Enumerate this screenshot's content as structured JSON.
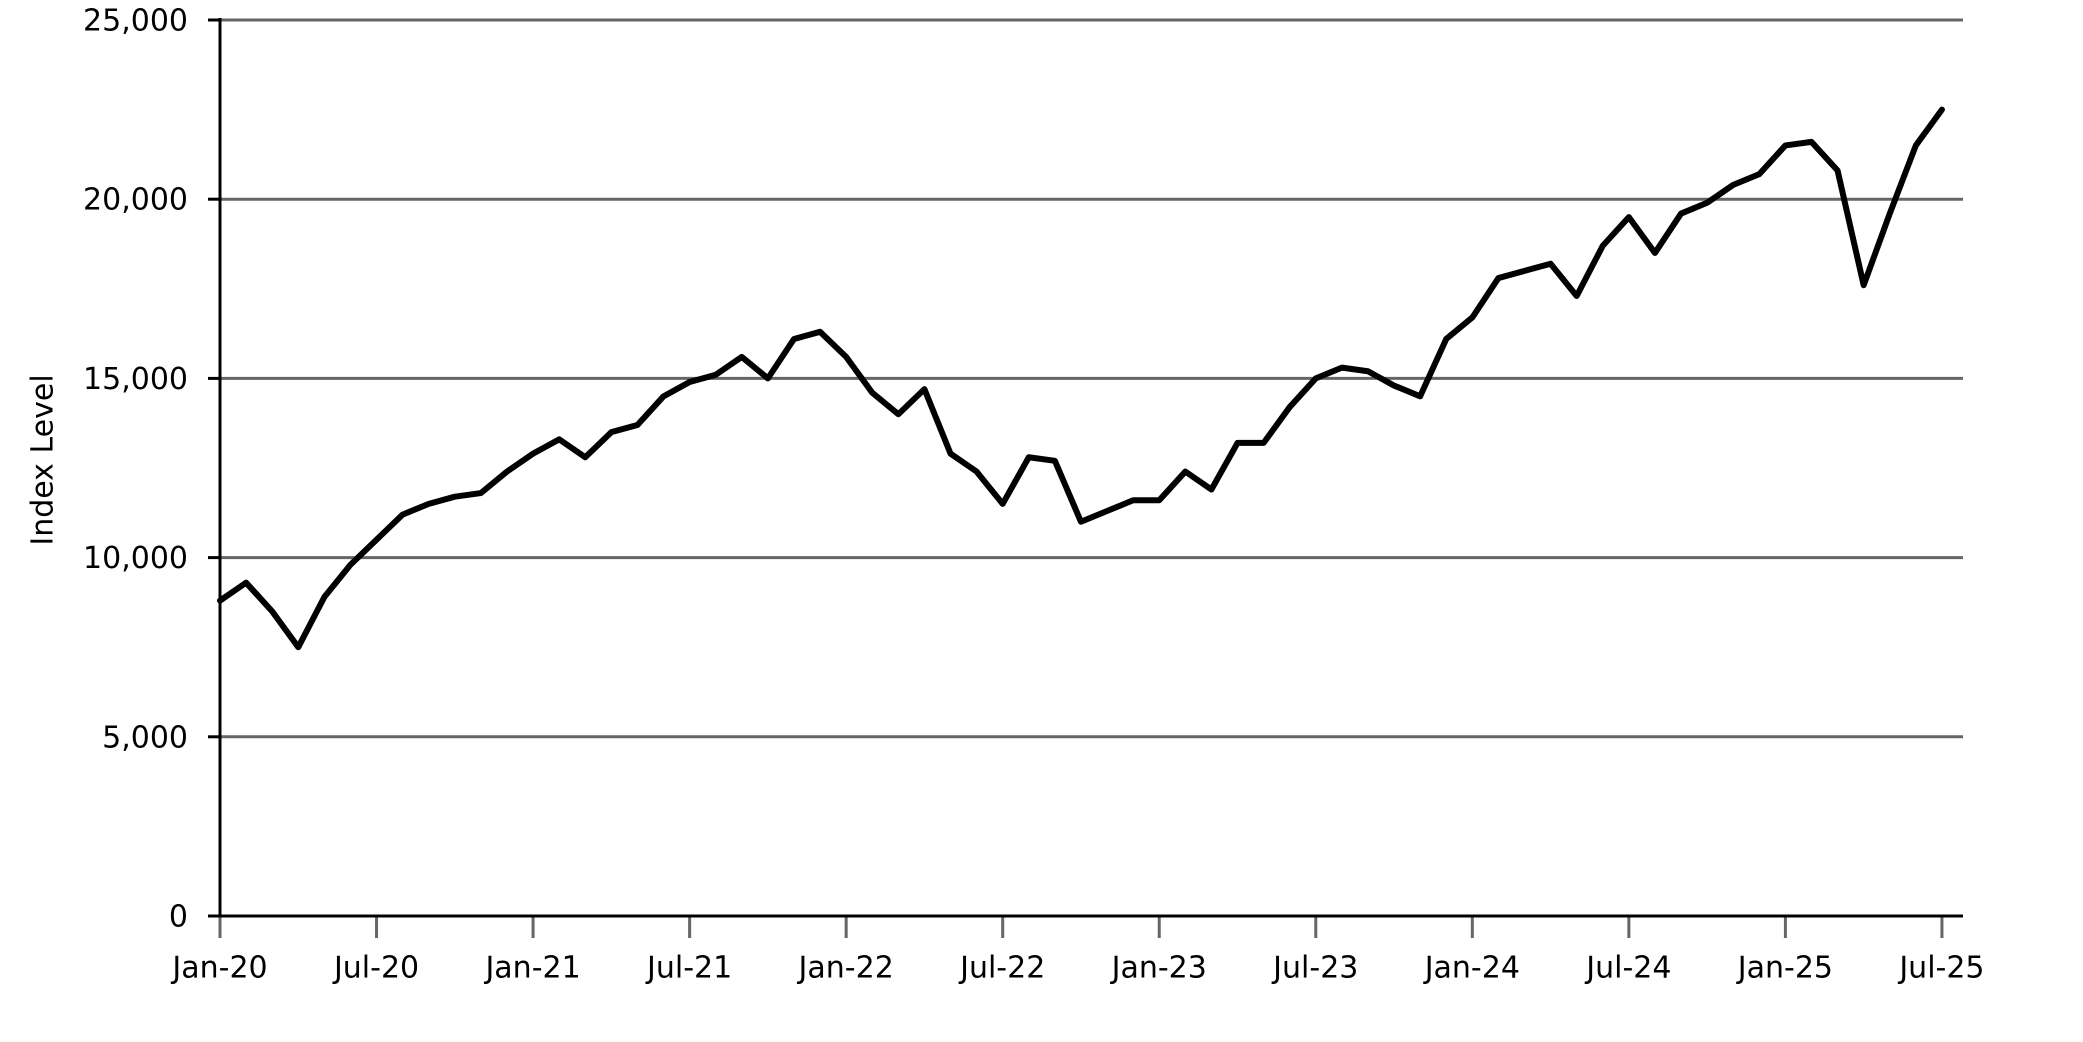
{
  "chart_data": {
    "type": "line",
    "y_label": "Index Level",
    "x": [
      "Jan-20",
      "Feb-20",
      "Mar-20",
      "Apr-20",
      "May-20",
      "Jun-20",
      "Jul-20",
      "Aug-20",
      "Sep-20",
      "Oct-20",
      "Nov-20",
      "Dec-20",
      "Jan-21",
      "Feb-21",
      "Mar-21",
      "Apr-21",
      "May-21",
      "Jun-21",
      "Jul-21",
      "Aug-21",
      "Sep-21",
      "Oct-21",
      "Nov-21",
      "Dec-21",
      "Jan-22",
      "Feb-22",
      "Mar-22",
      "Apr-22",
      "May-22",
      "Jun-22",
      "Jul-22",
      "Aug-22",
      "Sep-22",
      "Oct-22",
      "Nov-22",
      "Dec-22",
      "Jan-23",
      "Feb-23",
      "Mar-23",
      "Apr-23",
      "May-23",
      "Jun-23",
      "Jul-23",
      "Aug-23",
      "Sep-23",
      "Oct-23",
      "Nov-23",
      "Dec-23",
      "Jan-24",
      "Feb-24",
      "Mar-24",
      "Apr-24",
      "May-24",
      "Jun-24",
      "Jul-24",
      "Aug-24",
      "Sep-24",
      "Oct-24",
      "Nov-24",
      "Dec-24",
      "Jan-25",
      "Feb-25",
      "Mar-25",
      "Apr-25",
      "May-25",
      "Jun-25",
      "Jul-25"
    ],
    "values": [
      8800,
      9300,
      8500,
      7500,
      8900,
      9800,
      10500,
      11200,
      11500,
      11700,
      11800,
      12400,
      12900,
      13300,
      12800,
      13500,
      13700,
      14500,
      14900,
      15100,
      15600,
      15000,
      16100,
      16300,
      15600,
      14600,
      14000,
      14700,
      12900,
      12400,
      11500,
      12800,
      12700,
      11000,
      11300,
      11600,
      11600,
      12400,
      11900,
      13200,
      13200,
      14200,
      15000,
      15300,
      15200,
      14800,
      14500,
      16100,
      16700,
      17800,
      18000,
      18200,
      17300,
      18700,
      19500,
      18500,
      19600,
      19900,
      20400,
      20700,
      21500,
      21600,
      20800,
      17600,
      19600,
      21500,
      22500
    ],
    "color": "#000000",
    "xticks": [
      "Jan-20",
      "Jul-20",
      "Jan-21",
      "Jul-21",
      "Jan-22",
      "Jul-22",
      "Jan-23",
      "Jul-23",
      "Jan-24",
      "Jul-24",
      "Jan-25",
      "Jul-25"
    ],
    "ylim": [
      0,
      25000
    ],
    "yticks": [
      0,
      {
        "value": 5000,
        "label": "5,000"
      },
      {
        "value": 10000,
        "label": "10,000"
      },
      {
        "value": 15000,
        "label": "15,000"
      },
      {
        "value": 20000,
        "label": "20,000"
      },
      {
        "value": 25000,
        "label": "25,000"
      }
    ],
    "grid": true
  }
}
